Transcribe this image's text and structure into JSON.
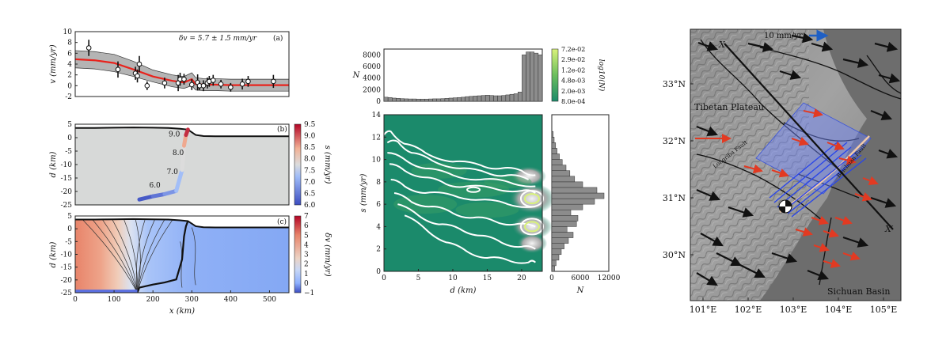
{
  "chart_data": [
    {
      "id": "a",
      "type": "scatter",
      "panel_tag": "(a)",
      "annotation": "δv = 5.7 ± 1.5 mm/yr",
      "xlim": [
        0,
        550
      ],
      "ylim": [
        -2,
        10
      ],
      "ylabel": "v (mm/yr)",
      "yticks": [
        -2,
        0,
        2,
        4,
        6,
        8,
        10
      ],
      "points": [
        {
          "x": 35,
          "y": 7.0,
          "err": 1.5
        },
        {
          "x": 110,
          "y": 3.0,
          "err": 1.5
        },
        {
          "x": 155,
          "y": 2.3,
          "err": 1.2
        },
        {
          "x": 160,
          "y": 1.8,
          "err": 1.2
        },
        {
          "x": 165,
          "y": 4.0,
          "err": 1.5
        },
        {
          "x": 185,
          "y": 0.0,
          "err": 0.8
        },
        {
          "x": 230,
          "y": 0.5,
          "err": 1.0
        },
        {
          "x": 265,
          "y": 0.5,
          "err": 1.5
        },
        {
          "x": 270,
          "y": 1.2,
          "err": 1.2
        },
        {
          "x": 280,
          "y": 1.2,
          "err": 1.0
        },
        {
          "x": 300,
          "y": 0.2,
          "err": 1.0
        },
        {
          "x": 315,
          "y": 0.6,
          "err": 1.5
        },
        {
          "x": 320,
          "y": 0.0,
          "err": 0.8
        },
        {
          "x": 330,
          "y": 0.0,
          "err": 1.0
        },
        {
          "x": 340,
          "y": 0.5,
          "err": 1.0
        },
        {
          "x": 345,
          "y": 0.8,
          "err": 1.0
        },
        {
          "x": 355,
          "y": 1.0,
          "err": 1.0
        },
        {
          "x": 375,
          "y": 0.3,
          "err": 0.8
        },
        {
          "x": 400,
          "y": -0.3,
          "err": 0.8
        },
        {
          "x": 430,
          "y": 0.3,
          "err": 1.0
        },
        {
          "x": 445,
          "y": 0.8,
          "err": 1.0
        },
        {
          "x": 510,
          "y": 0.8,
          "err": 1.2
        }
      ],
      "model": {
        "x": [
          0,
          50,
          100,
          150,
          200,
          250,
          280,
          300,
          310,
          330,
          360,
          400,
          450,
          500,
          550
        ],
        "y": [
          4.9,
          4.7,
          4.2,
          3.0,
          1.7,
          0.9,
          0.6,
          1.2,
          0.3,
          0.2,
          0.2,
          0.1,
          0.1,
          0.1,
          0.1
        ],
        "lower": [
          3.3,
          3.1,
          2.6,
          1.7,
          0.7,
          -0.2,
          -0.5,
          0.0,
          -0.8,
          -0.9,
          -0.9,
          -1.0,
          -1.0,
          -1.0,
          -1.0
        ],
        "upper": [
          6.5,
          6.3,
          5.8,
          4.5,
          2.9,
          2.0,
          1.7,
          2.4,
          1.5,
          1.3,
          1.3,
          1.2,
          1.2,
          1.2,
          1.2
        ]
      },
      "colors": {
        "model": "#e8231d",
        "band": "#b4b4b4"
      }
    },
    {
      "id": "b",
      "type": "area",
      "panel_tag": "(b)",
      "xlim": [
        0,
        550
      ],
      "ylim": [
        -25,
        5
      ],
      "ylabel": "d (km)",
      "yticks": [
        -25,
        -20,
        -15,
        -10,
        -5,
        0,
        5
      ],
      "topography": {
        "x": [
          0,
          50,
          100,
          150,
          200,
          240,
          270,
          290,
          310,
          330,
          360,
          400,
          450,
          500,
          550
        ],
        "y": [
          3.6,
          3.6,
          3.7,
          3.8,
          3.7,
          3.6,
          3.3,
          3.0,
          1.0,
          0.6,
          0.5,
          0.5,
          0.5,
          0.5,
          0.5
        ]
      },
      "fault": {
        "x": [
          165,
          200,
          230,
          260,
          275,
          280,
          285,
          290
        ],
        "y": [
          -23.0,
          -21.8,
          -21.0,
          -19.8,
          -12.0,
          -3.0,
          1.0,
          3.0
        ],
        "s": [
          6.0,
          6.3,
          6.6,
          7.0,
          7.5,
          8.0,
          9.0,
          9.5
        ]
      },
      "fault_labels": [
        {
          "text": "6.0",
          "x": 205,
          "y": -18.5
        },
        {
          "text": "7.0",
          "x": 250,
          "y": -13.5
        },
        {
          "text": "8.0",
          "x": 265,
          "y": -6.5
        },
        {
          "text": "9.0",
          "x": 255,
          "y": 0.5
        }
      ],
      "colorbar": {
        "label": "s (mm/yr)",
        "min": 6.0,
        "max": 9.5,
        "ticks": [
          "6.0",
          "6.5",
          "7.0",
          "7.5",
          "8.0",
          "8.5",
          "9.0",
          "9.5"
        ]
      }
    },
    {
      "id": "c",
      "type": "heatmap",
      "panel_tag": "(c)",
      "xlim": [
        0,
        550
      ],
      "ylim": [
        -25,
        5
      ],
      "xlabel": "x (km)",
      "ylabel": "d (km)",
      "xticks": [
        0,
        100,
        200,
        300,
        400,
        500
      ],
      "yticks": [
        -25,
        -20,
        -15,
        -10,
        -5,
        0,
        5
      ],
      "colorbar": {
        "label": "δv (mm/yr)",
        "min": -1,
        "max": 7,
        "ticks": [
          "−1",
          "0",
          "1",
          "2",
          "3",
          "4",
          "5",
          "6",
          "7"
        ]
      }
    },
    {
      "id": "d",
      "type": "heatmap",
      "xlim": [
        0,
        23
      ],
      "ylim": [
        0,
        14
      ],
      "xlabel": "d (km)",
      "ylabel": "s (mm/yr)",
      "xticks": [
        0,
        5,
        10,
        15,
        20
      ],
      "yticks": [
        0,
        2,
        4,
        6,
        8,
        10,
        12,
        14
      ],
      "top_hist": {
        "ylabel": "N",
        "yticks": [
          0,
          2000,
          4000,
          6000,
          8000
        ],
        "values": [
          700,
          650,
          550,
          500,
          450,
          420,
          400,
          400,
          380,
          380,
          380,
          400,
          420,
          420,
          450,
          500,
          550,
          600,
          650,
          700,
          800,
          850,
          900,
          950,
          1000,
          1050,
          1000,
          950,
          950,
          1000,
          1100,
          1200,
          1300,
          1600,
          8000,
          8500,
          8500,
          8300,
          8000
        ]
      },
      "right_hist": {
        "xlabel": "N",
        "xticks": [
          0,
          6000,
          12000
        ],
        "bins_s": [
          0.25,
          0.75,
          1.25,
          1.75,
          2.25,
          2.75,
          3.25,
          3.75,
          4.25,
          4.75,
          5.25,
          5.75,
          6.25,
          6.75,
          7.25,
          7.75,
          8.25,
          8.75,
          9.25,
          9.75,
          10.25,
          10.75,
          11.25,
          11.75,
          12.25
        ],
        "values": [
          600,
          900,
          1500,
          2000,
          2600,
          3500,
          4500,
          3200,
          5200,
          5500,
          4000,
          6500,
          9000,
          11000,
          9500,
          6500,
          4800,
          3800,
          3000,
          2200,
          1600,
          1100,
          800,
          500,
          300
        ]
      },
      "colorbar": {
        "label": "log10(N)",
        "ticks": [
          "7.2e-02",
          "2.9e-02",
          "1.2e-02",
          "4.8e-03",
          "2.0e-03",
          "8.0e-04"
        ]
      },
      "colors": {
        "background": "#1b8a6b"
      }
    },
    {
      "id": "map",
      "type": "map",
      "lon_ticks": [
        "101°E",
        "102°E",
        "103°E",
        "104°E",
        "105°E"
      ],
      "lat_ticks": [
        "33°N",
        "32°N",
        "31°N",
        "30°N"
      ],
      "labels": {
        "plateau": "Tibetan Plateau",
        "basin": "Sichuan Basin",
        "scale": "10 mm/yr",
        "x": "X",
        "xprime": "X′",
        "longriba": "Longriba Fault",
        "beichuan": "Beichuan Fault"
      },
      "colors": {
        "gps_black": "#111111",
        "gps_red": "#e23a22",
        "gps_blue": "#1f5fc4",
        "fault_plane": "#6f86ff"
      }
    }
  ]
}
